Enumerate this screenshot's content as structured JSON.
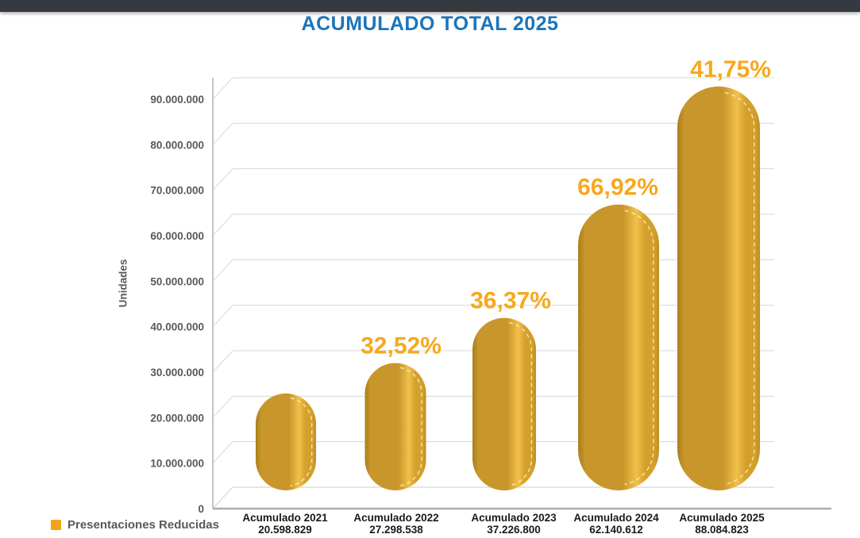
{
  "title": "ACUMULADO TOTAL 2025",
  "legend": {
    "label": "Presentaciones Reducidas"
  },
  "colors": {
    "top_bar": "#343A40",
    "title": "#1B75BC",
    "axis_text": "#595959",
    "category_text": "#1A1A1A",
    "grid": "#D8D8D8",
    "axis_line": "#C4C4C4",
    "baseline": "#ADADAD",
    "bar_edge_left": "#A87F1C",
    "bar_body": "#C8962B",
    "bar_highlight": "#F2C04A",
    "bar_right": "#D3A02C",
    "bar_edge_right": "#BE8F25",
    "seam": "#FFEFC2",
    "pct": "#F7A81D",
    "legend_swatch": "#F0A41B"
  },
  "chart_data": {
    "type": "bar",
    "style": "3d-rounded-cylinder",
    "title": "ACUMULADO TOTAL 2025",
    "xlabel": "",
    "ylabel": "Unidades",
    "ylim": [
      0,
      90000000
    ],
    "ytick_step": 10000000,
    "ytick_labels": [
      "0",
      "10.000.000",
      "20.000.000",
      "30.000.000",
      "40.000.000",
      "50.000.000",
      "60.000.000",
      "70.000.000",
      "80.000.000",
      "90.000.000"
    ],
    "grid": true,
    "legend_position": "bottom-left",
    "series_name": "Presentaciones Reducidas",
    "categories": [
      "Acumulado 2021",
      "Acumulado 2022",
      "Acumulado 2023",
      "Acumulado 2024",
      "Acumulado 2025"
    ],
    "values": [
      20598829,
      27298538,
      37226800,
      62140612,
      88084823
    ],
    "value_labels": [
      "20.598.829",
      "27.298.538",
      "37.226.800",
      "62.140.612",
      "88.084.823"
    ],
    "growth_pct_labels": [
      "",
      "32,52%",
      "36,37%",
      "66,92%",
      "41,75%"
    ]
  }
}
